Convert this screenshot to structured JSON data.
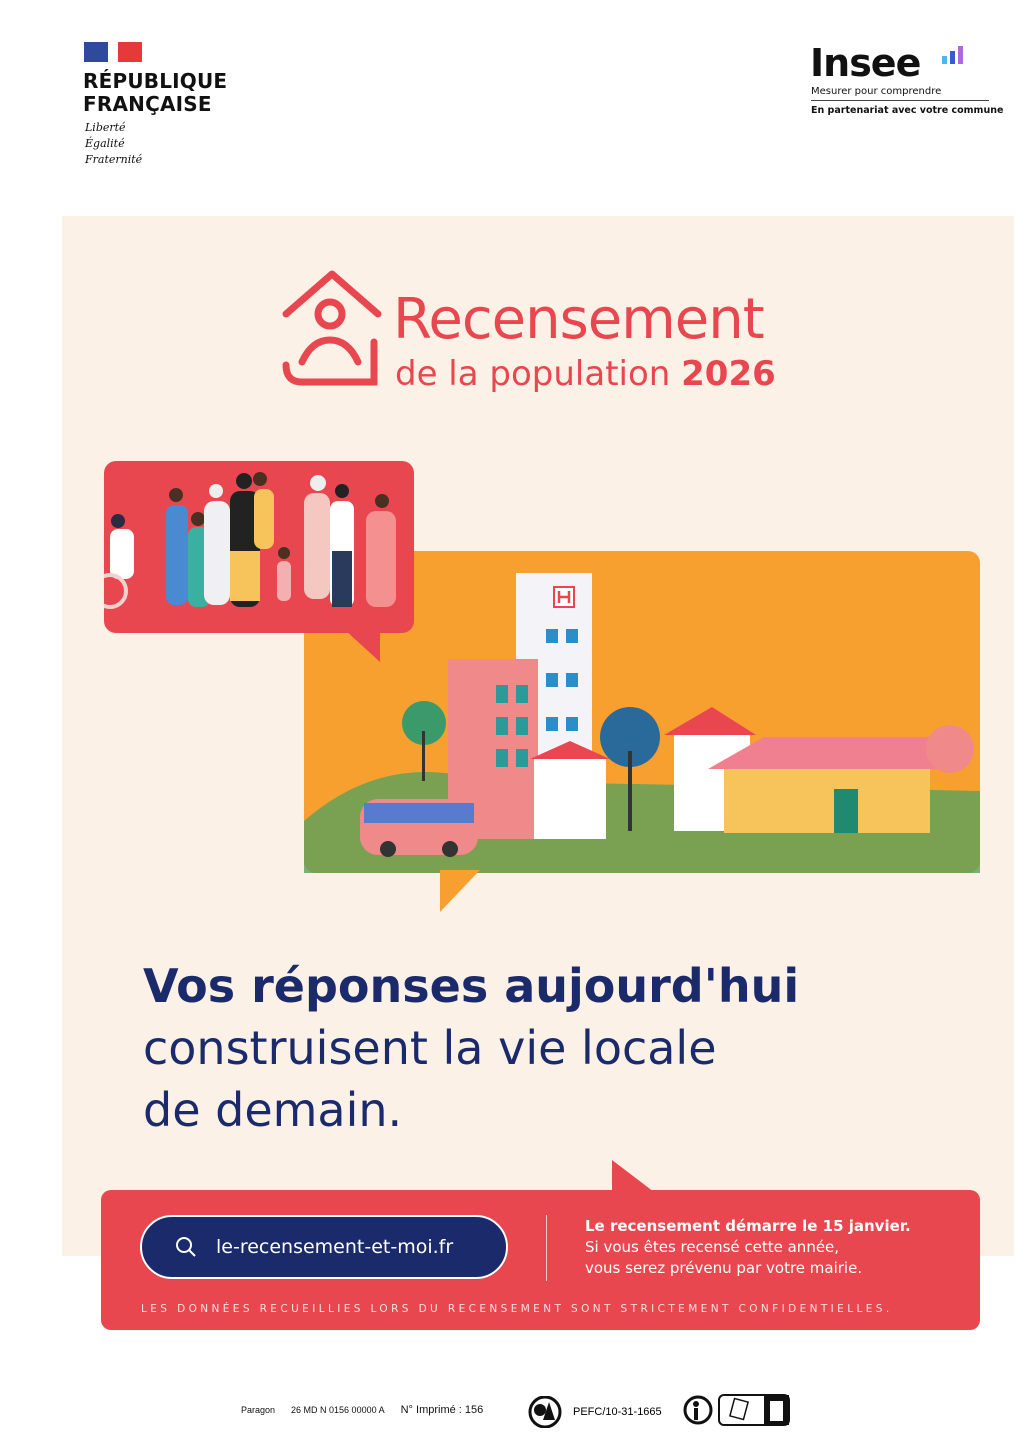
{
  "header": {
    "republique": {
      "name_line1": "RÉPUBLIQUE",
      "name_line2": "FRANÇAISE",
      "motto": [
        "Liberté",
        "Égalité",
        "Fraternité"
      ]
    },
    "insee": {
      "logo": "Insee",
      "tagline": "Mesurer pour comprendre",
      "partner": "En partenariat avec votre commune"
    }
  },
  "poster": {
    "title": "Recensement",
    "subtitle": "de la population",
    "year": "2026",
    "headline_bold": "Vos réponses aujourd'hui",
    "headline_line2": "construisent la vie locale",
    "headline_line3": "de demain.",
    "website": "le-recensement-et-moi.fr",
    "info_bold": "Le recensement démarre le 15 janvier.",
    "info_line2": "Si vous êtes recensé cette année,",
    "info_line3": "vous serez prévenu par votre mairie.",
    "confidential": "LES DONNÉES RECUEILLIES LORS DU RECENSEMENT SONT STRICTEMENT CONFIDENTIELLES."
  },
  "footer": {
    "printer": "Paragon",
    "code": "26 MD N 0156 00000 A",
    "printed_no": "N° Imprimé : 156",
    "pefc": "PEFC/10-31-1665"
  },
  "colors": {
    "red": "#e8474f",
    "orange": "#f7a030",
    "navy": "#1b2a6b",
    "cream": "#fbf1e6"
  }
}
